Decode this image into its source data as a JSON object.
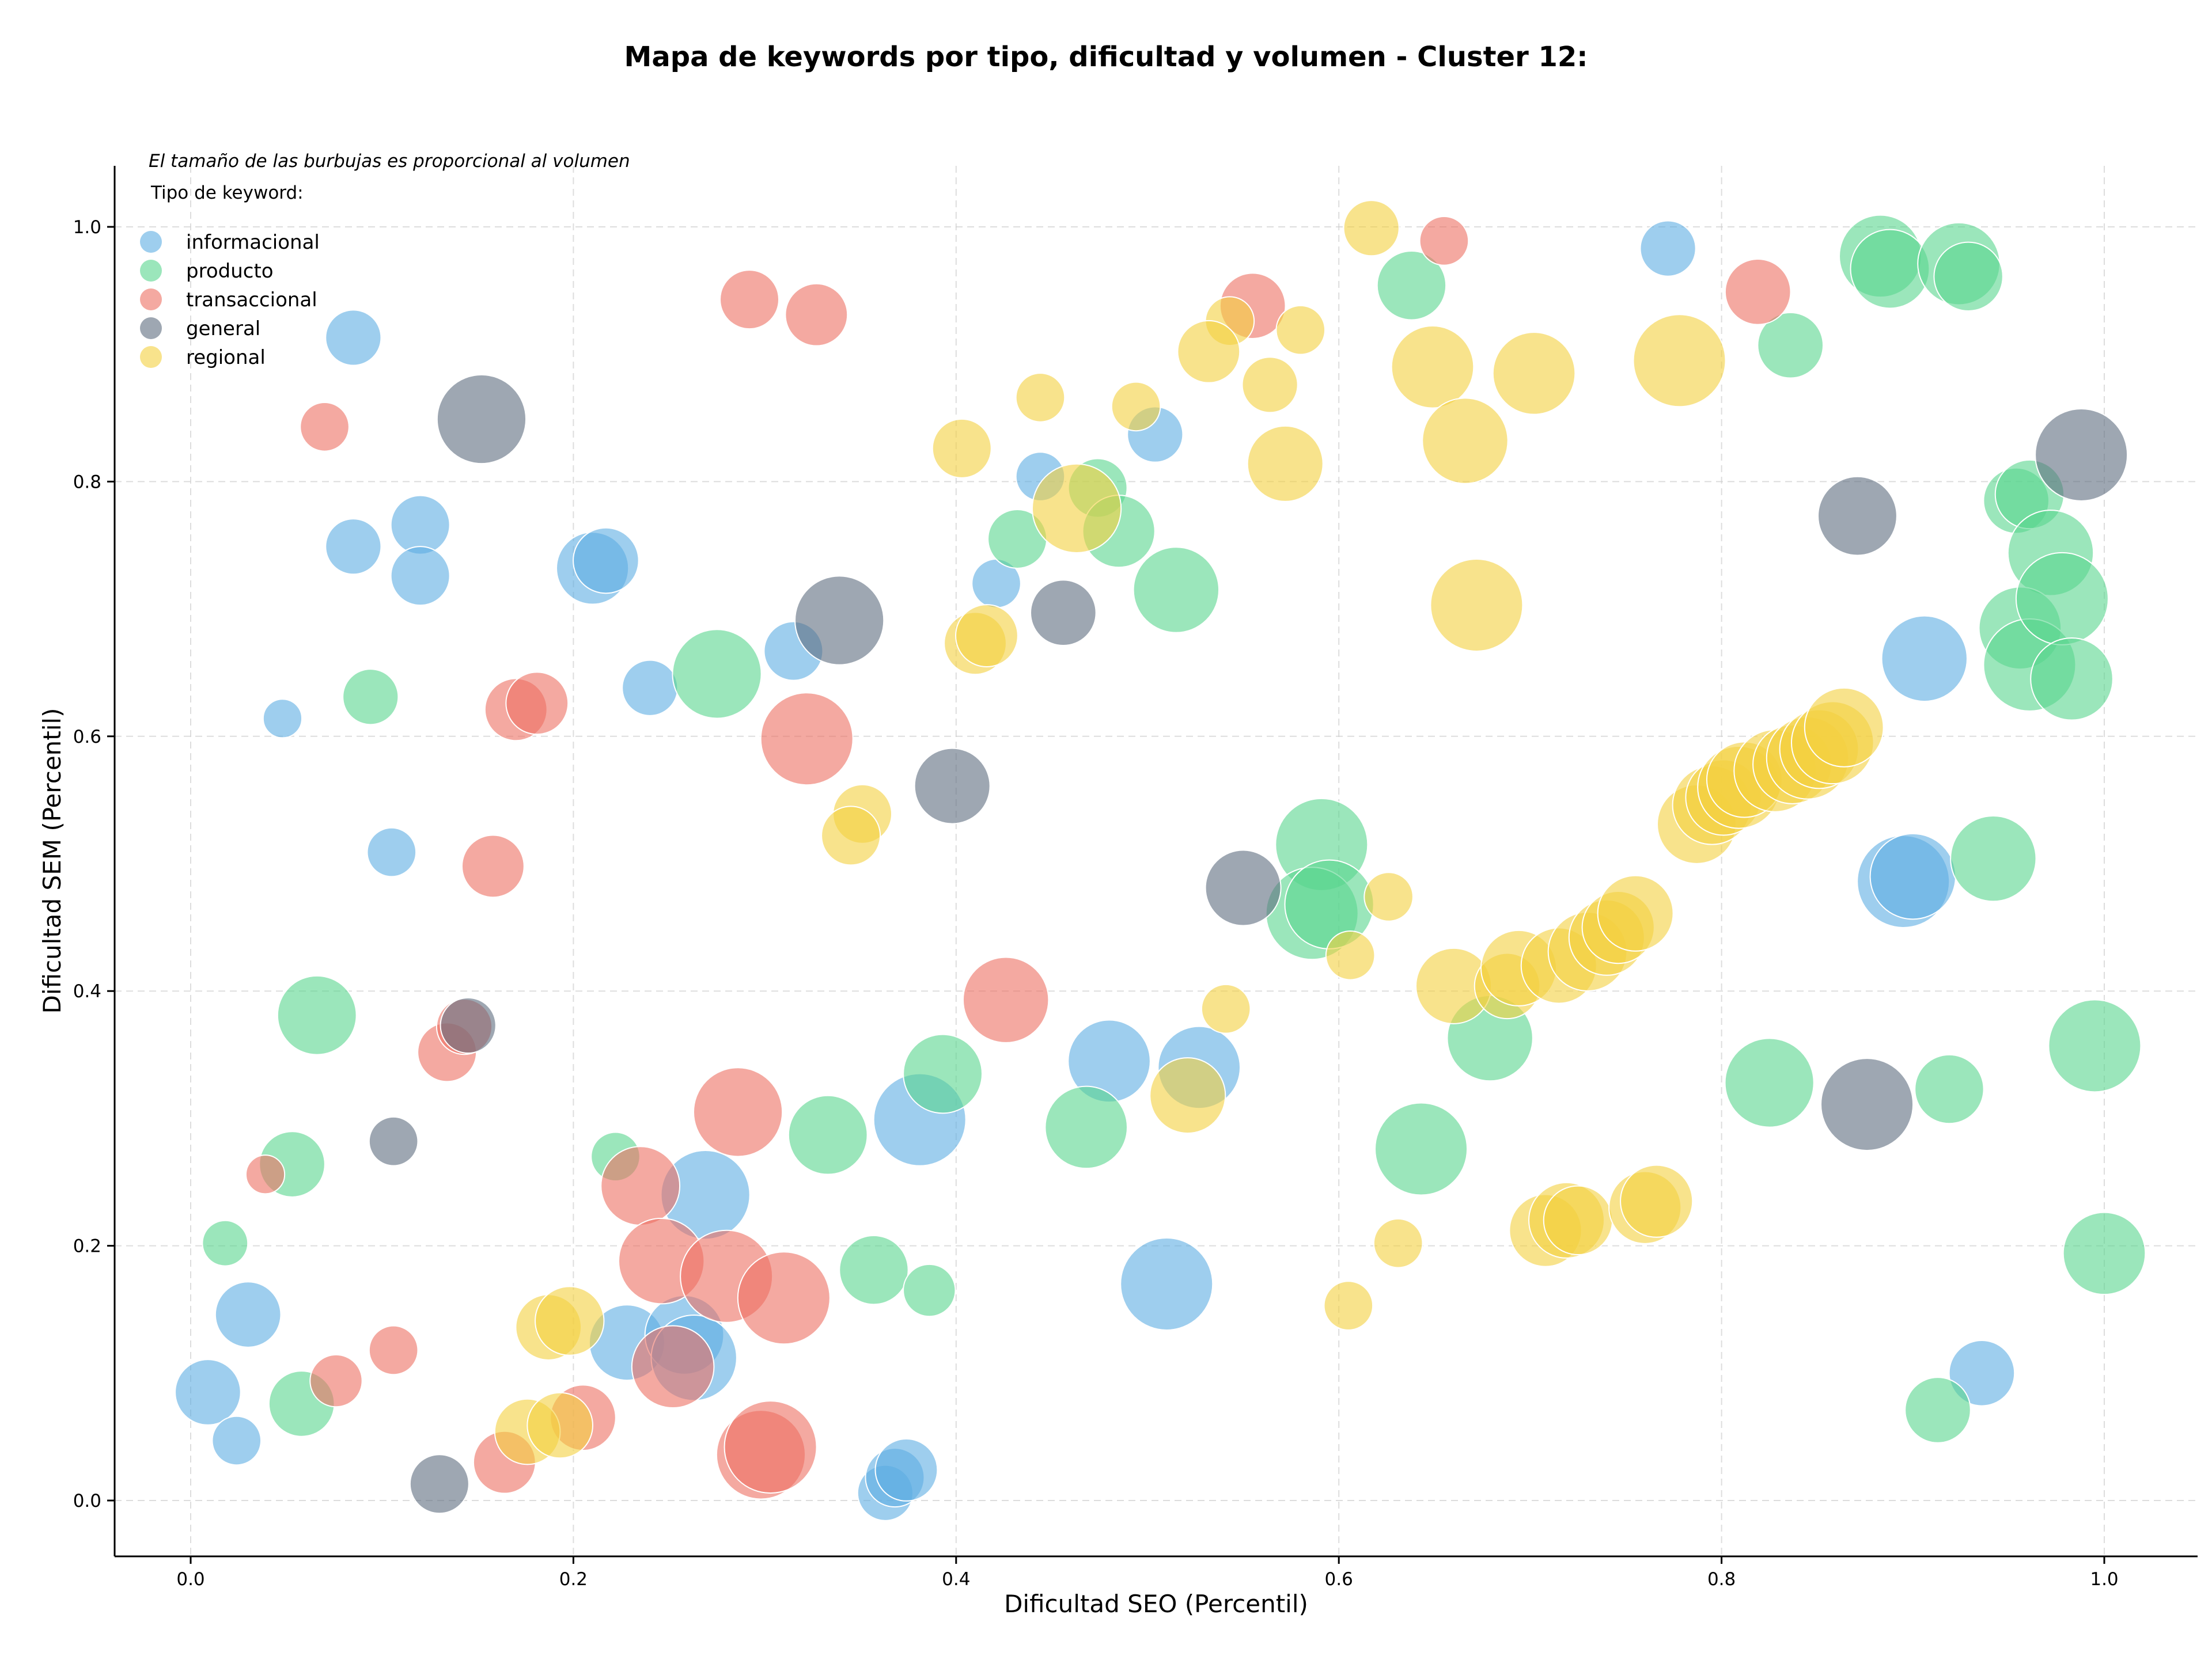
{
  "chart_data": {
    "type": "scatter",
    "title": "Mapa de keywords por tipo, dificultad y volumen - Cluster 12:",
    "xlabel": "Dificultad SEO (Percentil)",
    "ylabel": "Dificultad SEM (Percentil)",
    "xlim": [
      -0.04,
      1.05
    ],
    "ylim": [
      -0.04,
      1.05
    ],
    "xticks": [
      "0.0",
      "0.2",
      "0.4",
      "0.6",
      "0.8",
      "1.0"
    ],
    "yticks": [
      "0.0",
      "0.2",
      "0.4",
      "0.6",
      "0.8",
      "1.0"
    ],
    "grid": true,
    "size_note": "El tamaño de las burbujas es proporcional al volumen",
    "legend": {
      "title": "Tipo de keyword:",
      "position": "top-left"
    },
    "series": [
      {
        "name": "informacional",
        "color": "#5dade2",
        "points": [
          {
            "x": 0.048,
            "y": 0.614,
            "size": 0.2
          },
          {
            "x": 0.085,
            "y": 0.913,
            "size": 0.45
          },
          {
            "x": 0.085,
            "y": 0.749,
            "size": 0.45
          },
          {
            "x": 0.12,
            "y": 0.766,
            "size": 0.5
          },
          {
            "x": 0.12,
            "y": 0.726,
            "size": 0.5
          },
          {
            "x": 0.105,
            "y": 0.509,
            "size": 0.35
          },
          {
            "x": 0.21,
            "y": 0.732,
            "size": 0.7
          },
          {
            "x": 0.217,
            "y": 0.738,
            "size": 0.6
          },
          {
            "x": 0.24,
            "y": 0.638,
            "size": 0.45
          },
          {
            "x": 0.315,
            "y": 0.667,
            "size": 0.5
          },
          {
            "x": 0.421,
            "y": 0.72,
            "size": 0.35
          },
          {
            "x": 0.444,
            "y": 0.804,
            "size": 0.35
          },
          {
            "x": 0.504,
            "y": 0.837,
            "size": 0.45
          },
          {
            "x": 0.772,
            "y": 0.983,
            "size": 0.45
          },
          {
            "x": 0.906,
            "y": 0.661,
            "size": 0.9
          },
          {
            "x": 0.895,
            "y": 0.486,
            "size": 1.0
          },
          {
            "x": 0.9,
            "y": 0.49,
            "size": 0.9
          },
          {
            "x": 0.48,
            "y": 0.345,
            "size": 0.85
          },
          {
            "x": 0.527,
            "y": 0.34,
            "size": 0.85
          },
          {
            "x": 0.381,
            "y": 0.299,
            "size": 1.0
          },
          {
            "x": 0.269,
            "y": 0.24,
            "size": 0.95
          },
          {
            "x": 0.228,
            "y": 0.124,
            "size": 0.75
          },
          {
            "x": 0.258,
            "y": 0.13,
            "size": 0.8
          },
          {
            "x": 0.263,
            "y": 0.112,
            "size": 0.9
          },
          {
            "x": 0.51,
            "y": 0.17,
            "size": 1.0
          },
          {
            "x": 0.03,
            "y": 0.146,
            "size": 0.6
          },
          {
            "x": 0.009,
            "y": 0.085,
            "size": 0.6
          },
          {
            "x": 0.024,
            "y": 0.047,
            "size": 0.35
          },
          {
            "x": 0.363,
            "y": 0.006,
            "size": 0.45
          },
          {
            "x": 0.368,
            "y": 0.018,
            "size": 0.5
          },
          {
            "x": 0.374,
            "y": 0.024,
            "size": 0.55
          },
          {
            "x": 0.936,
            "y": 0.1,
            "size": 0.6
          }
        ]
      },
      {
        "name": "producto",
        "color": "#58d68d",
        "points": [
          {
            "x": 0.094,
            "y": 0.631,
            "size": 0.45
          },
          {
            "x": 0.066,
            "y": 0.381,
            "size": 0.8
          },
          {
            "x": 0.053,
            "y": 0.264,
            "size": 0.6
          },
          {
            "x": 0.018,
            "y": 0.202,
            "size": 0.3
          },
          {
            "x": 0.058,
            "y": 0.076,
            "size": 0.6
          },
          {
            "x": 0.222,
            "y": 0.27,
            "size": 0.35
          },
          {
            "x": 0.275,
            "y": 0.649,
            "size": 0.95
          },
          {
            "x": 0.333,
            "y": 0.287,
            "size": 0.8
          },
          {
            "x": 0.357,
            "y": 0.181,
            "size": 0.65
          },
          {
            "x": 0.386,
            "y": 0.165,
            "size": 0.4
          },
          {
            "x": 0.393,
            "y": 0.335,
            "size": 0.8
          },
          {
            "x": 0.432,
            "y": 0.755,
            "size": 0.5
          },
          {
            "x": 0.474,
            "y": 0.795,
            "size": 0.5
          },
          {
            "x": 0.485,
            "y": 0.761,
            "size": 0.7
          },
          {
            "x": 0.515,
            "y": 0.715,
            "size": 0.9
          },
          {
            "x": 0.468,
            "y": 0.293,
            "size": 0.85
          },
          {
            "x": 0.638,
            "y": 0.954,
            "size": 0.65
          },
          {
            "x": 0.591,
            "y": 0.515,
            "size": 1.0
          },
          {
            "x": 0.586,
            "y": 0.461,
            "size": 1.0
          },
          {
            "x": 0.595,
            "y": 0.468,
            "size": 0.95
          },
          {
            "x": 0.643,
            "y": 0.276,
            "size": 1.0
          },
          {
            "x": 0.679,
            "y": 0.363,
            "size": 0.9
          },
          {
            "x": 0.825,
            "y": 0.328,
            "size": 0.95
          },
          {
            "x": 0.836,
            "y": 0.907,
            "size": 0.6
          },
          {
            "x": 0.883,
            "y": 0.977,
            "size": 0.85
          },
          {
            "x": 0.888,
            "y": 0.967,
            "size": 0.8
          },
          {
            "x": 0.924,
            "y": 0.971,
            "size": 0.85
          },
          {
            "x": 0.929,
            "y": 0.961,
            "size": 0.65
          },
          {
            "x": 0.942,
            "y": 0.504,
            "size": 0.9
          },
          {
            "x": 0.919,
            "y": 0.323,
            "size": 0.65
          },
          {
            "x": 0.913,
            "y": 0.071,
            "size": 0.6
          },
          {
            "x": 0.954,
            "y": 0.785,
            "size": 0.6
          },
          {
            "x": 0.961,
            "y": 0.79,
            "size": 0.65
          },
          {
            "x": 0.972,
            "y": 0.744,
            "size": 0.9
          },
          {
            "x": 0.956,
            "y": 0.685,
            "size": 0.85
          },
          {
            "x": 0.961,
            "y": 0.656,
            "size": 1.0
          },
          {
            "x": 0.978,
            "y": 0.708,
            "size": 1.0
          },
          {
            "x": 0.983,
            "y": 0.645,
            "size": 0.85
          },
          {
            "x": 0.995,
            "y": 0.357,
            "size": 1.0
          },
          {
            "x": 1.0,
            "y": 0.194,
            "size": 0.85
          }
        ]
      },
      {
        "name": "transaccional",
        "color": "#ec7063",
        "points": [
          {
            "x": 0.07,
            "y": 0.843,
            "size": 0.35
          },
          {
            "x": 0.292,
            "y": 0.943,
            "size": 0.5
          },
          {
            "x": 0.327,
            "y": 0.931,
            "size": 0.55
          },
          {
            "x": 0.17,
            "y": 0.621,
            "size": 0.55
          },
          {
            "x": 0.181,
            "y": 0.626,
            "size": 0.55
          },
          {
            "x": 0.158,
            "y": 0.498,
            "size": 0.55
          },
          {
            "x": 0.322,
            "y": 0.598,
            "size": 1.0
          },
          {
            "x": 0.134,
            "y": 0.352,
            "size": 0.5
          },
          {
            "x": 0.143,
            "y": 0.372,
            "size": 0.45
          },
          {
            "x": 0.039,
            "y": 0.256,
            "size": 0.2
          },
          {
            "x": 0.076,
            "y": 0.094,
            "size": 0.4
          },
          {
            "x": 0.106,
            "y": 0.118,
            "size": 0.35
          },
          {
            "x": 0.164,
            "y": 0.03,
            "size": 0.55
          },
          {
            "x": 0.205,
            "y": 0.065,
            "size": 0.6
          },
          {
            "x": 0.235,
            "y": 0.247,
            "size": 0.8
          },
          {
            "x": 0.246,
            "y": 0.188,
            "size": 0.9
          },
          {
            "x": 0.252,
            "y": 0.105,
            "size": 0.85
          },
          {
            "x": 0.28,
            "y": 0.176,
            "size": 1.0
          },
          {
            "x": 0.286,
            "y": 0.305,
            "size": 0.95
          },
          {
            "x": 0.31,
            "y": 0.159,
            "size": 1.0
          },
          {
            "x": 0.298,
            "y": 0.036,
            "size": 0.95
          },
          {
            "x": 0.303,
            "y": 0.042,
            "size": 1.0
          },
          {
            "x": 0.426,
            "y": 0.393,
            "size": 0.9
          },
          {
            "x": 0.555,
            "y": 0.938,
            "size": 0.6
          },
          {
            "x": 0.655,
            "y": 0.989,
            "size": 0.35
          },
          {
            "x": 0.819,
            "y": 0.949,
            "size": 0.6
          }
        ]
      },
      {
        "name": "general",
        "color": "#5d6d7e",
        "points": [
          {
            "x": 0.152,
            "y": 0.849,
            "size": 0.95
          },
          {
            "x": 0.145,
            "y": 0.373,
            "size": 0.45
          },
          {
            "x": 0.106,
            "y": 0.282,
            "size": 0.35
          },
          {
            "x": 0.13,
            "y": 0.013,
            "size": 0.5
          },
          {
            "x": 0.339,
            "y": 0.691,
            "size": 0.95
          },
          {
            "x": 0.398,
            "y": 0.561,
            "size": 0.75
          },
          {
            "x": 0.456,
            "y": 0.697,
            "size": 0.6
          },
          {
            "x": 0.55,
            "y": 0.481,
            "size": 0.75
          },
          {
            "x": 0.871,
            "y": 0.773,
            "size": 0.8
          },
          {
            "x": 0.876,
            "y": 0.311,
            "size": 1.0
          },
          {
            "x": 0.988,
            "y": 0.821,
            "size": 1.0
          }
        ]
      },
      {
        "name": "regional",
        "color": "#f4d03f",
        "points": [
          {
            "x": 0.617,
            "y": 0.999,
            "size": 0.45
          },
          {
            "x": 0.543,
            "y": 0.926,
            "size": 0.35
          },
          {
            "x": 0.532,
            "y": 0.902,
            "size": 0.55
          },
          {
            "x": 0.58,
            "y": 0.919,
            "size": 0.35
          },
          {
            "x": 0.564,
            "y": 0.876,
            "size": 0.45
          },
          {
            "x": 0.444,
            "y": 0.866,
            "size": 0.35
          },
          {
            "x": 0.494,
            "y": 0.859,
            "size": 0.35
          },
          {
            "x": 0.403,
            "y": 0.826,
            "size": 0.5
          },
          {
            "x": 0.572,
            "y": 0.814,
            "size": 0.75
          },
          {
            "x": 0.649,
            "y": 0.89,
            "size": 0.85
          },
          {
            "x": 0.702,
            "y": 0.885,
            "size": 0.85
          },
          {
            "x": 0.778,
            "y": 0.895,
            "size": 1.0
          },
          {
            "x": 0.666,
            "y": 0.832,
            "size": 0.9
          },
          {
            "x": 0.463,
            "y": 0.779,
            "size": 0.95
          },
          {
            "x": 0.41,
            "y": 0.673,
            "size": 0.55
          },
          {
            "x": 0.416,
            "y": 0.679,
            "size": 0.55
          },
          {
            "x": 0.672,
            "y": 0.703,
            "size": 1.0
          },
          {
            "x": 0.351,
            "y": 0.539,
            "size": 0.5
          },
          {
            "x": 0.345,
            "y": 0.522,
            "size": 0.5
          },
          {
            "x": 0.626,
            "y": 0.474,
            "size": 0.35
          },
          {
            "x": 0.606,
            "y": 0.428,
            "size": 0.35
          },
          {
            "x": 0.541,
            "y": 0.386,
            "size": 0.35
          },
          {
            "x": 0.521,
            "y": 0.318,
            "size": 0.75
          },
          {
            "x": 0.631,
            "y": 0.202,
            "size": 0.35
          },
          {
            "x": 0.605,
            "y": 0.153,
            "size": 0.35
          },
          {
            "x": 0.187,
            "y": 0.136,
            "size": 0.6
          },
          {
            "x": 0.198,
            "y": 0.141,
            "size": 0.65
          },
          {
            "x": 0.176,
            "y": 0.054,
            "size": 0.6
          },
          {
            "x": 0.193,
            "y": 0.059,
            "size": 0.6
          },
          {
            "x": 0.66,
            "y": 0.404,
            "size": 0.75
          },
          {
            "x": 0.688,
            "y": 0.404,
            "size": 0.6
          },
          {
            "x": 0.694,
            "y": 0.418,
            "size": 0.75
          },
          {
            "x": 0.715,
            "y": 0.42,
            "size": 0.75
          },
          {
            "x": 0.73,
            "y": 0.431,
            "size": 0.8
          },
          {
            "x": 0.74,
            "y": 0.442,
            "size": 0.75
          },
          {
            "x": 0.746,
            "y": 0.45,
            "size": 0.7
          },
          {
            "x": 0.755,
            "y": 0.461,
            "size": 0.75
          },
          {
            "x": 0.708,
            "y": 0.212,
            "size": 0.7
          },
          {
            "x": 0.719,
            "y": 0.22,
            "size": 0.75
          },
          {
            "x": 0.725,
            "y": 0.22,
            "size": 0.65
          },
          {
            "x": 0.76,
            "y": 0.23,
            "size": 0.7
          },
          {
            "x": 0.766,
            "y": 0.235,
            "size": 0.7
          },
          {
            "x": 0.787,
            "y": 0.531,
            "size": 0.8
          },
          {
            "x": 0.795,
            "y": 0.546,
            "size": 0.8
          },
          {
            "x": 0.801,
            "y": 0.552,
            "size": 0.75
          },
          {
            "x": 0.809,
            "y": 0.56,
            "size": 0.85
          },
          {
            "x": 0.812,
            "y": 0.566,
            "size": 0.75
          },
          {
            "x": 0.828,
            "y": 0.573,
            "size": 0.85
          },
          {
            "x": 0.837,
            "y": 0.578,
            "size": 0.8
          },
          {
            "x": 0.845,
            "y": 0.583,
            "size": 0.85
          },
          {
            "x": 0.851,
            "y": 0.59,
            "size": 0.8
          },
          {
            "x": 0.858,
            "y": 0.595,
            "size": 0.85
          },
          {
            "x": 0.864,
            "y": 0.607,
            "size": 0.8
          }
        ]
      }
    ]
  }
}
